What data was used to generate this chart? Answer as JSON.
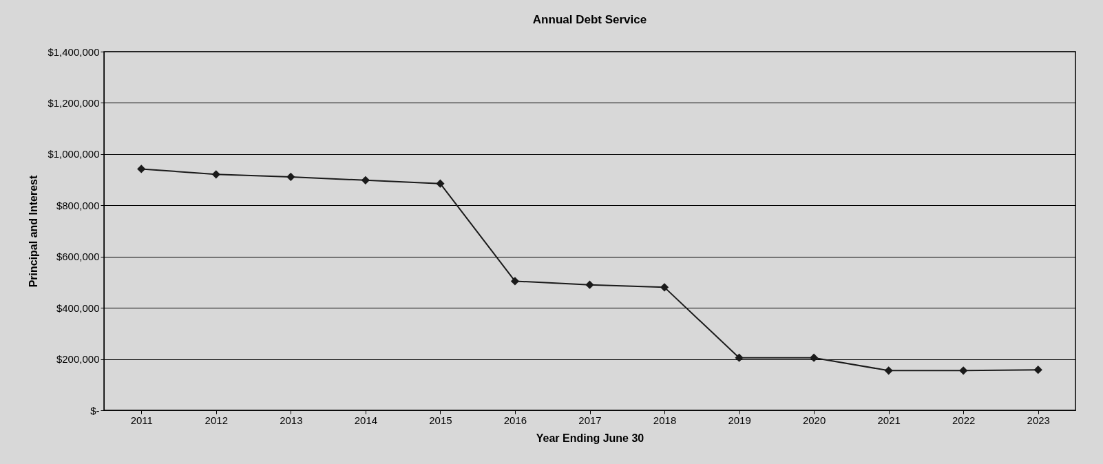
{
  "chart_data": {
    "type": "line",
    "title": "Annual Debt Service",
    "xlabel": "Year Ending June 30",
    "ylabel": "Principal and Interest",
    "categories": [
      "2011",
      "2012",
      "2013",
      "2014",
      "2015",
      "2016",
      "2017",
      "2018",
      "2019",
      "2020",
      "2021",
      "2022",
      "2023"
    ],
    "series": [
      {
        "color": "#1a1a1a",
        "values": [
          942000,
          921000,
          911000,
          898000,
          885000,
          504000,
          490000,
          480000,
          205000,
          205000,
          155000,
          155000,
          158000
        ]
      }
    ],
    "ylim": [
      0,
      1400000
    ],
    "yticks": [
      {
        "value": 0,
        "label": "$-"
      },
      {
        "value": 200000,
        "label": "$200,000"
      },
      {
        "value": 400000,
        "label": "$400,000"
      },
      {
        "value": 600000,
        "label": "$600,000"
      },
      {
        "value": 800000,
        "label": "$800,000"
      },
      {
        "value": 1000000,
        "label": "$1,000,000"
      },
      {
        "value": 1200000,
        "label": "$1,200,000"
      },
      {
        "value": 1400000,
        "label": "$1,400,000"
      }
    ],
    "grid": "y",
    "marker": "diamond",
    "line_style": "solid"
  }
}
